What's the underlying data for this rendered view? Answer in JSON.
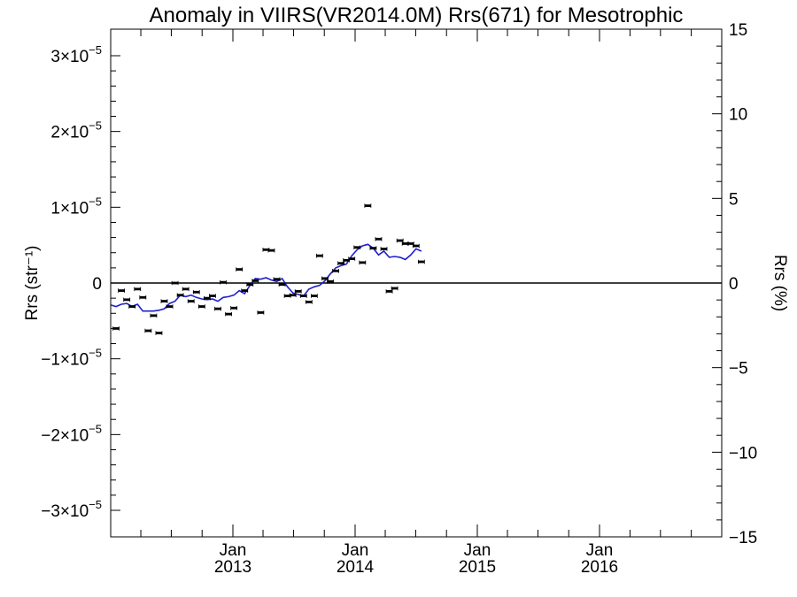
{
  "chart_data": {
    "type": "scatter",
    "title": "Anomaly in VIIRS(VR2014.0M) Rrs(671) for Mesotrophic",
    "ylabel_left": "Rrs (str⁻¹)",
    "ylabel_right": "Rrs (%)",
    "left_axis": {
      "ylim": [
        -3.35e-05,
        3.35e-05
      ],
      "ticks": [
        {
          "value": 3e-05,
          "mantissa": "3",
          "exp": "−5"
        },
        {
          "value": 2e-05,
          "mantissa": "2",
          "exp": "−5"
        },
        {
          "value": 1e-05,
          "mantissa": "1",
          "exp": "−5"
        },
        {
          "value": 0,
          "mantissa": "0",
          "exp": ""
        },
        {
          "value": -1e-05,
          "mantissa": "−1",
          "exp": "−5"
        },
        {
          "value": -2e-05,
          "mantissa": "−2",
          "exp": "−5"
        },
        {
          "value": -3e-05,
          "mantissa": "−3",
          "exp": "−5"
        }
      ]
    },
    "right_axis": {
      "ylim": [
        -15,
        15
      ],
      "ticks": [
        "15",
        "10",
        "5",
        "0",
        "−5",
        "−10",
        "−15"
      ],
      "tick_values": [
        15,
        10,
        5,
        0,
        -5,
        -10,
        -15
      ]
    },
    "x_axis": {
      "xlim": [
        "2012-01-02",
        "2016-12-31"
      ],
      "ticks": [
        {
          "date": "2013-01-01",
          "line1": "Jan",
          "line2": "2013"
        },
        {
          "date": "2014-01-01",
          "line1": "Jan",
          "line2": "2014"
        },
        {
          "date": "2015-01-01",
          "line1": "Jan",
          "line2": "2015"
        },
        {
          "date": "2016-01-01",
          "line1": "Jan",
          "line2": "2016"
        }
      ]
    },
    "grid": false,
    "zero_line": true,
    "points": [
      {
        "x": "2012-01-18",
        "y": -6e-06
      },
      {
        "x": "2012-02-03",
        "y": -1e-06
      },
      {
        "x": "2012-02-19",
        "y": -2.2e-06
      },
      {
        "x": "2012-03-06",
        "y": -3.1e-06
      },
      {
        "x": "2012-03-22",
        "y": -8e-07
      },
      {
        "x": "2012-04-07",
        "y": -1.9e-06
      },
      {
        "x": "2012-04-23",
        "y": -6.3e-06
      },
      {
        "x": "2012-05-09",
        "y": -4.3e-06
      },
      {
        "x": "2012-05-25",
        "y": -6.6e-06
      },
      {
        "x": "2012-06-10",
        "y": -2.4e-06
      },
      {
        "x": "2012-06-26",
        "y": -3.1e-06
      },
      {
        "x": "2012-07-12",
        "y": 0
      },
      {
        "x": "2012-07-28",
        "y": -1.6e-06
      },
      {
        "x": "2012-08-13",
        "y": -8e-07
      },
      {
        "x": "2012-08-29",
        "y": -2.4e-06
      },
      {
        "x": "2012-09-14",
        "y": -1.2e-06
      },
      {
        "x": "2012-09-30",
        "y": -3.1e-06
      },
      {
        "x": "2012-10-16",
        "y": -2e-06
      },
      {
        "x": "2012-11-01",
        "y": -1.7e-06
      },
      {
        "x": "2012-11-17",
        "y": -3.4e-06
      },
      {
        "x": "2012-12-03",
        "y": 1e-07
      },
      {
        "x": "2012-12-19",
        "y": -4.1e-06
      },
      {
        "x": "2013-01-04",
        "y": -3.3e-06
      },
      {
        "x": "2013-01-20",
        "y": 1.8e-06
      },
      {
        "x": "2013-02-05",
        "y": -1e-06
      },
      {
        "x": "2013-02-21",
        "y": -2e-07
      },
      {
        "x": "2013-03-09",
        "y": 3e-07
      },
      {
        "x": "2013-03-25",
        "y": -3.9e-06
      },
      {
        "x": "2013-04-10",
        "y": 4.4e-06
      },
      {
        "x": "2013-04-26",
        "y": 4.3e-06
      },
      {
        "x": "2013-05-12",
        "y": 5e-07
      },
      {
        "x": "2013-05-28",
        "y": -2e-07
      },
      {
        "x": "2013-06-13",
        "y": -1.7e-06
      },
      {
        "x": "2013-06-29",
        "y": -1.6e-06
      },
      {
        "x": "2013-07-15",
        "y": -1.1e-06
      },
      {
        "x": "2013-07-31",
        "y": -1.7e-06
      },
      {
        "x": "2013-08-16",
        "y": -2.5e-06
      },
      {
        "x": "2013-09-01",
        "y": -1.7e-06
      },
      {
        "x": "2013-09-17",
        "y": 3.6e-06
      },
      {
        "x": "2013-10-03",
        "y": 6e-07
      },
      {
        "x": "2013-10-19",
        "y": 2e-07
      },
      {
        "x": "2013-11-04",
        "y": 1.6e-06
      },
      {
        "x": "2013-11-20",
        "y": 2.6e-06
      },
      {
        "x": "2013-12-06",
        "y": 3e-06
      },
      {
        "x": "2013-12-22",
        "y": 3.2e-06
      },
      {
        "x": "2014-01-07",
        "y": 4.7e-06
      },
      {
        "x": "2014-01-23",
        "y": 2.7e-06
      },
      {
        "x": "2014-02-08",
        "y": 1.02e-05
      },
      {
        "x": "2014-02-24",
        "y": 4.6e-06
      },
      {
        "x": "2014-03-12",
        "y": 5.8e-06
      },
      {
        "x": "2014-03-28",
        "y": 4.5e-06
      },
      {
        "x": "2014-04-13",
        "y": -1.1e-06
      },
      {
        "x": "2014-04-29",
        "y": -7e-07
      },
      {
        "x": "2014-05-15",
        "y": 5.6e-06
      },
      {
        "x": "2014-05-31",
        "y": 5.2e-06
      },
      {
        "x": "2014-06-16",
        "y": 5.2e-06
      },
      {
        "x": "2014-07-02",
        "y": 4.9e-06
      },
      {
        "x": "2014-07-18",
        "y": 2.8e-06
      }
    ],
    "line": [
      {
        "x": "2012-01-02",
        "y": -2.9e-06
      },
      {
        "x": "2012-01-18",
        "y": -3.1e-06
      },
      {
        "x": "2012-02-03",
        "y": -2.8e-06
      },
      {
        "x": "2012-02-19",
        "y": -2.7e-06
      },
      {
        "x": "2012-03-06",
        "y": -3.1e-06
      },
      {
        "x": "2012-03-22",
        "y": -2.8e-06
      },
      {
        "x": "2012-04-07",
        "y": -3.7e-06
      },
      {
        "x": "2012-04-23",
        "y": -3.7e-06
      },
      {
        "x": "2012-05-09",
        "y": -3.7e-06
      },
      {
        "x": "2012-05-25",
        "y": -3.6e-06
      },
      {
        "x": "2012-06-10",
        "y": -3.4e-06
      },
      {
        "x": "2012-06-26",
        "y": -2.7e-06
      },
      {
        "x": "2012-07-12",
        "y": -2.4e-06
      },
      {
        "x": "2012-07-28",
        "y": -1.6e-06
      },
      {
        "x": "2012-08-13",
        "y": -1.8e-06
      },
      {
        "x": "2012-08-29",
        "y": -1.6e-06
      },
      {
        "x": "2012-09-14",
        "y": -1.9e-06
      },
      {
        "x": "2012-09-30",
        "y": -2.1e-06
      },
      {
        "x": "2012-10-16",
        "y": -2.2e-06
      },
      {
        "x": "2012-11-01",
        "y": -2.1e-06
      },
      {
        "x": "2012-11-17",
        "y": -2.4e-06
      },
      {
        "x": "2012-12-03",
        "y": -1.9e-06
      },
      {
        "x": "2012-12-19",
        "y": -1.8e-06
      },
      {
        "x": "2013-01-04",
        "y": -1.6e-06
      },
      {
        "x": "2013-01-20",
        "y": -1e-06
      },
      {
        "x": "2013-02-05",
        "y": -1.4e-06
      },
      {
        "x": "2013-02-21",
        "y": -3e-07
      },
      {
        "x": "2013-03-09",
        "y": 6e-07
      },
      {
        "x": "2013-03-25",
        "y": 5e-07
      },
      {
        "x": "2013-04-10",
        "y": 7e-07
      },
      {
        "x": "2013-04-26",
        "y": 4e-07
      },
      {
        "x": "2013-05-12",
        "y": 2e-07
      },
      {
        "x": "2013-05-28",
        "y": 6e-07
      },
      {
        "x": "2013-06-13",
        "y": -5e-07
      },
      {
        "x": "2013-06-29",
        "y": -1.3e-06
      },
      {
        "x": "2013-07-15",
        "y": -1.5e-06
      },
      {
        "x": "2013-07-31",
        "y": -1.7e-06
      },
      {
        "x": "2013-08-16",
        "y": -8e-07
      },
      {
        "x": "2013-09-01",
        "y": -5e-07
      },
      {
        "x": "2013-09-17",
        "y": -3e-07
      },
      {
        "x": "2013-10-03",
        "y": 3e-07
      },
      {
        "x": "2013-10-19",
        "y": 1.2e-06
      },
      {
        "x": "2013-11-04",
        "y": 2e-06
      },
      {
        "x": "2013-11-20",
        "y": 2.3e-06
      },
      {
        "x": "2013-12-06",
        "y": 2.5e-06
      },
      {
        "x": "2013-12-22",
        "y": 3.6e-06
      },
      {
        "x": "2014-01-07",
        "y": 4.4e-06
      },
      {
        "x": "2014-01-23",
        "y": 4.9e-06
      },
      {
        "x": "2014-02-08",
        "y": 5.1e-06
      },
      {
        "x": "2014-02-24",
        "y": 4.6e-06
      },
      {
        "x": "2014-03-12",
        "y": 3.7e-06
      },
      {
        "x": "2014-03-28",
        "y": 4.2e-06
      },
      {
        "x": "2014-04-13",
        "y": 3.4e-06
      },
      {
        "x": "2014-04-29",
        "y": 3.5e-06
      },
      {
        "x": "2014-05-15",
        "y": 3.4e-06
      },
      {
        "x": "2014-05-31",
        "y": 3.1e-06
      },
      {
        "x": "2014-06-16",
        "y": 3.7e-06
      },
      {
        "x": "2014-07-02",
        "y": 4.5e-06
      },
      {
        "x": "2014-07-18",
        "y": 4.2e-06
      }
    ],
    "colors": {
      "points": "#000000",
      "line": "#1f1fcc",
      "axes": "#000000",
      "zero_line": "#000000"
    }
  }
}
